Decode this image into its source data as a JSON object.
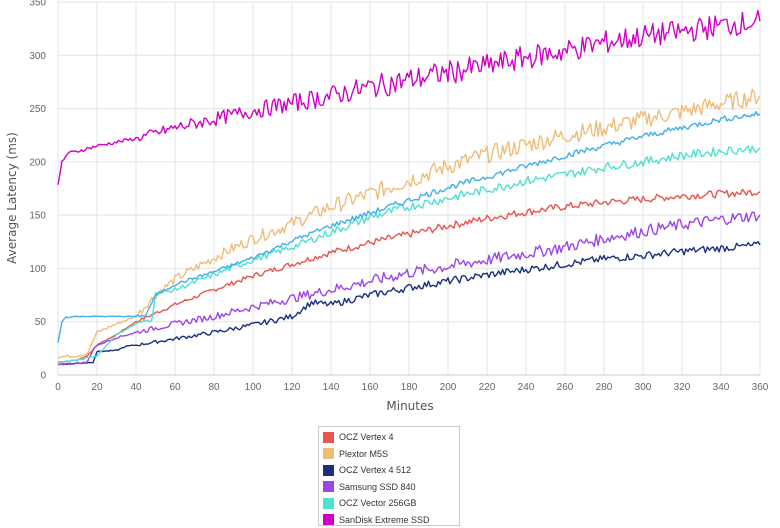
{
  "chart_data": {
    "type": "line",
    "xlabel": "Minutes",
    "ylabel": "Average Latency (ms)",
    "xlim": [
      0,
      360
    ],
    "ylim": [
      0,
      350
    ],
    "x_ticks": [
      0,
      20,
      40,
      60,
      80,
      100,
      120,
      140,
      160,
      180,
      200,
      220,
      240,
      260,
      280,
      300,
      320,
      340,
      360
    ],
    "y_ticks": [
      0,
      50,
      100,
      150,
      200,
      250,
      300,
      350
    ],
    "grid": true,
    "legend_position": "bottom-center",
    "series": [
      {
        "name": "OCZ Vertex 4",
        "color": "#e8544e",
        "x": [
          0,
          10,
          15,
          20,
          30,
          40,
          50,
          60,
          80,
          100,
          120,
          140,
          160,
          180,
          200,
          220,
          240,
          260,
          280,
          300,
          320,
          340,
          360
        ],
        "y": [
          12,
          14,
          18,
          28,
          38,
          50,
          58,
          66,
          80,
          93,
          104,
          115,
          124,
          132,
          140,
          147,
          153,
          158,
          162,
          165,
          168,
          170,
          172
        ]
      },
      {
        "name": "Plextor M5S",
        "color": "#f0bd78",
        "x": [
          0,
          10,
          15,
          20,
          30,
          40,
          50,
          60,
          80,
          100,
          120,
          140,
          160,
          180,
          200,
          220,
          240,
          260,
          280,
          300,
          320,
          340,
          360
        ],
        "y": [
          17,
          18,
          20,
          40,
          48,
          55,
          75,
          90,
          110,
          128,
          142,
          158,
          170,
          183,
          196,
          207,
          216,
          225,
          232,
          240,
          247,
          255,
          262
        ]
      },
      {
        "name": "OCZ Vertex 4 512",
        "color": "#1a2f7d",
        "x": [
          0,
          10,
          18,
          20,
          30,
          35,
          40,
          60,
          80,
          100,
          120,
          130,
          140,
          160,
          180,
          200,
          220,
          240,
          260,
          280,
          300,
          320,
          340,
          360
        ],
        "y": [
          10,
          11,
          12,
          22,
          23,
          27,
          28,
          34,
          40,
          47,
          55,
          68,
          66,
          75,
          82,
          88,
          94,
          99,
          104,
          109,
          112,
          116,
          119,
          122
        ]
      },
      {
        "name": "Samsung SSD 840",
        "color": "#9b46e8",
        "x": [
          0,
          10,
          15,
          18,
          20,
          30,
          40,
          60,
          80,
          100,
          120,
          140,
          160,
          180,
          200,
          220,
          240,
          260,
          280,
          300,
          320,
          340,
          360
        ],
        "y": [
          10,
          11,
          12,
          24,
          28,
          35,
          40,
          48,
          55,
          64,
          72,
          80,
          88,
          96,
          102,
          108,
          114,
          120,
          128,
          135,
          141,
          146,
          150
        ]
      },
      {
        "name": "OCZ Vector 256GB",
        "color": "#4fe0d0",
        "x": [
          0,
          10,
          20,
          25,
          30,
          40,
          48,
          50,
          60,
          80,
          100,
          120,
          140,
          160,
          180,
          200,
          220,
          240,
          260,
          280,
          300,
          320,
          340,
          360
        ],
        "y": [
          12,
          14,
          18,
          28,
          38,
          48,
          52,
          76,
          80,
          94,
          108,
          120,
          134,
          148,
          158,
          166,
          174,
          182,
          188,
          195,
          200,
          206,
          210,
          213
        ]
      },
      {
        "name": "SanDisk Extreme SSD",
        "color": "#d000c8",
        "x": [
          0,
          2,
          5,
          10,
          20,
          40,
          60,
          80,
          100,
          120,
          140,
          160,
          180,
          200,
          220,
          240,
          260,
          280,
          300,
          320,
          340,
          360
        ],
        "y": [
          177,
          200,
          208,
          210,
          215,
          222,
          232,
          240,
          248,
          255,
          262,
          270,
          277,
          284,
          290,
          298,
          304,
          312,
          318,
          322,
          328,
          332
        ]
      },
      {
        "name": "",
        "color": "#3fb0e8",
        "x": [
          0,
          2,
          4,
          10,
          20,
          30,
          40,
          45,
          50,
          60,
          80,
          100,
          120,
          140,
          160,
          180,
          200,
          220,
          240,
          260,
          280,
          300,
          320,
          340,
          360
        ],
        "y": [
          30,
          50,
          54,
          55,
          55,
          55,
          55,
          56,
          75,
          85,
          97,
          110,
          126,
          140,
          152,
          164,
          176,
          186,
          196,
          206,
          215,
          224,
          232,
          240,
          245
        ]
      }
    ]
  },
  "legend": {
    "items": [
      {
        "label": "OCZ Vertex 4",
        "color": "#e8544e"
      },
      {
        "label": "Plextor M5S",
        "color": "#f0bd78"
      },
      {
        "label": "OCZ Vertex 4 512",
        "color": "#1a2f7d"
      },
      {
        "label": "Samsung SSD 840",
        "color": "#9b46e8"
      },
      {
        "label": "OCZ Vector 256GB",
        "color": "#4fe0d0"
      },
      {
        "label": "SanDisk Extreme SSD",
        "color": "#d000c8"
      }
    ]
  }
}
